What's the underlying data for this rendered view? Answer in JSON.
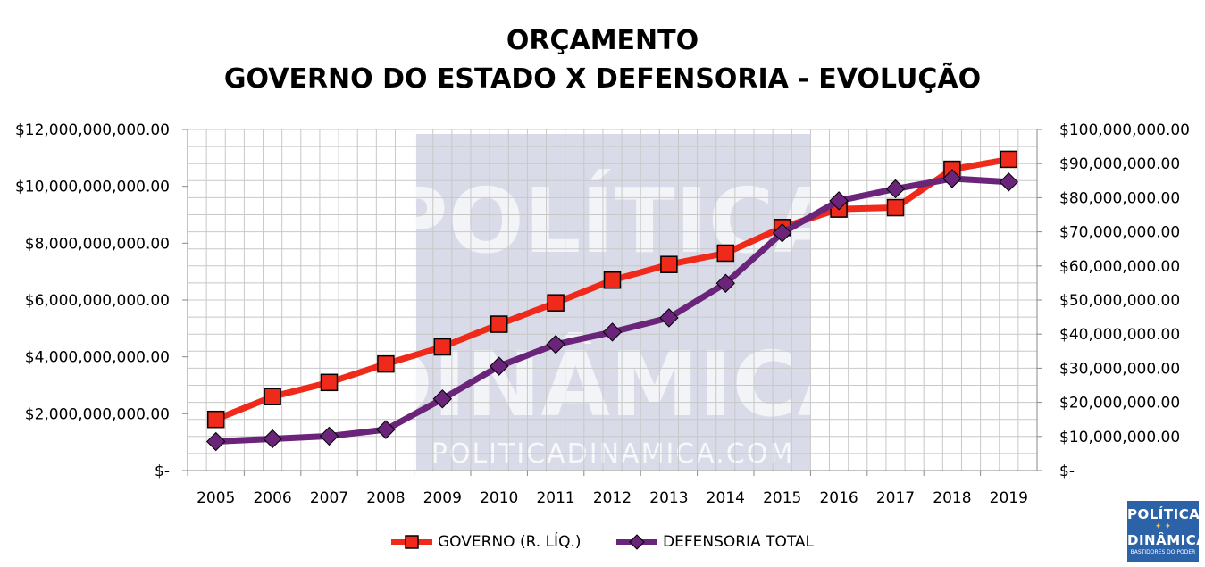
{
  "title": {
    "line1": "ORÇAMENTO",
    "line2": "GOVERNO DO ESTADO X DEFENSORIA - EVOLUÇÃO"
  },
  "watermark": {
    "line1": "POLÍTICA",
    "line2": "DINÂMICA",
    "site": "POLITICADINAMICA.COM"
  },
  "logo": {
    "line1": "POLÍTICA",
    "line2": "DINÂMICA",
    "tagline": "BASTIDORES DO PODER"
  },
  "colors": {
    "governo": "#f02a1a",
    "defensoria": "#6a2479",
    "grid": "#c8c8c8",
    "watermark": "#b9c0d6",
    "logo_bg": "#2c62a8"
  },
  "legend": {
    "governo": "GOVERNO (R. LÍQ.)",
    "defensoria": "DEFENSORIA TOTAL"
  },
  "chart_data": {
    "type": "line",
    "categories": [
      "2005",
      "2006",
      "2007",
      "2008",
      "2009",
      "2010",
      "2011",
      "2012",
      "2013",
      "2014",
      "2015",
      "2016",
      "2017",
      "2018",
      "2019"
    ],
    "y_left": {
      "range": [
        0,
        12000000000
      ],
      "ticks": [
        0,
        2000000000,
        4000000000,
        6000000000,
        8000000000,
        10000000000,
        12000000000
      ],
      "tick_labels": [
        "$-",
        "$2,000,000,000.00",
        "$4,000,000,000.00",
        "$6,000,000,000.00",
        "$8,000,000,000.00",
        "$10,000,000,000.00",
        "$12,000,000,000.00"
      ]
    },
    "y_right": {
      "range": [
        0,
        100000000
      ],
      "ticks": [
        0,
        10000000,
        20000000,
        30000000,
        40000000,
        50000000,
        60000000,
        70000000,
        80000000,
        90000000,
        100000000
      ],
      "tick_labels": [
        "$-",
        "$10,000,000.00",
        "$20,000,000.00",
        "$30,000,000.00",
        "$40,000,000.00",
        "$50,000,000.00",
        "$60,000,000.00",
        "$70,000,000.00",
        "$80,000,000.00",
        "$90,000,000.00",
        "$100,000,000.00"
      ]
    },
    "series": [
      {
        "name": "GOVERNO (R. LÍQ.)",
        "axis": "left",
        "marker": "square",
        "values": [
          1800000000,
          2600000000,
          3100000000,
          3750000000,
          4350000000,
          5150000000,
          5900000000,
          6700000000,
          7250000000,
          7650000000,
          8550000000,
          9200000000,
          9250000000,
          10600000000,
          10950000000
        ]
      },
      {
        "name": "DEFENSORIA TOTAL",
        "axis": "right",
        "marker": "diamond",
        "values": [
          8500000,
          9300000,
          10100000,
          12000000,
          21000000,
          30600000,
          37000000,
          40600000,
          44800000,
          54900000,
          69700000,
          79100000,
          82600000,
          85600000,
          84600000
        ]
      }
    ],
    "grid": true,
    "legend_position": "bottom"
  }
}
